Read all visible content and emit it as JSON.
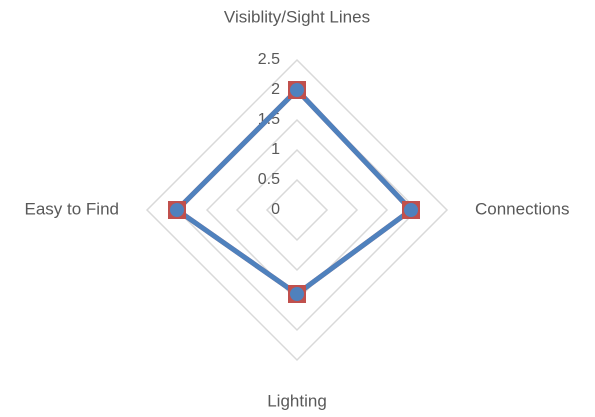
{
  "chart_data": {
    "type": "radar",
    "categories": [
      "Visiblity/Sight Lines",
      "Connections",
      "Lighting",
      "Easy to Find"
    ],
    "series": [
      {
        "color": "#c0504d",
        "marker": "square",
        "values": [
          2,
          1.9,
          1.4,
          2
        ]
      },
      {
        "color": "#4f81bd",
        "marker": "circle",
        "values": [
          2,
          1.9,
          1.4,
          2
        ]
      }
    ],
    "ylim": [
      0,
      2.5
    ],
    "yticks": [
      0,
      0.5,
      1,
      1.5,
      2,
      2.5
    ],
    "grid": true
  }
}
